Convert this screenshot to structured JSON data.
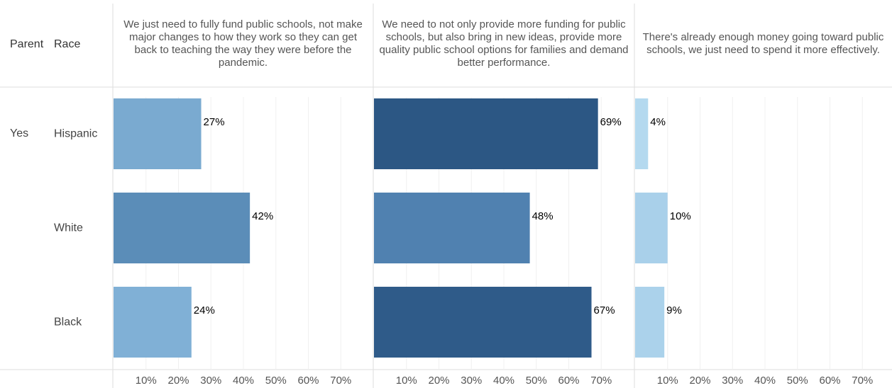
{
  "chart_data": {
    "type": "bar",
    "row_headers": [
      "Parent",
      "Race"
    ],
    "parent": "Yes",
    "categories": [
      "Hispanic",
      "White",
      "Black"
    ],
    "series": [
      {
        "name": "We just need to fully fund public schools, not make major changes to how they work so they can get back to teaching the way they were before the pandemic.",
        "values": [
          27,
          42,
          24
        ],
        "value_labels": [
          "27%",
          "42%",
          "24%"
        ],
        "colors": [
          "#7aaad0",
          "#5b8db8",
          "#80b0d6"
        ]
      },
      {
        "name": "We need to not only provide more funding for public schools, but also bring in new ideas, provide more quality public school options for families and demand better performance.",
        "values": [
          69,
          48,
          67
        ],
        "value_labels": [
          "69%",
          "48%",
          "67%"
        ],
        "colors": [
          "#2c5784",
          "#5081b0",
          "#2f5b89"
        ]
      },
      {
        "name": "There's already enough money going toward public schools, we just need to spend it more effectively.",
        "values": [
          4,
          10,
          9
        ],
        "value_labels": [
          "4%",
          "10%",
          "9%"
        ],
        "colors": [
          "#b4d9ef",
          "#a9d0ea",
          "#abd2eb"
        ]
      }
    ],
    "xlim": [
      0,
      80
    ],
    "xticks": [
      {
        "value": 10,
        "label": "10%"
      },
      {
        "value": 20,
        "label": "20%"
      },
      {
        "value": 30,
        "label": "30%"
      },
      {
        "value": 40,
        "label": "40%"
      },
      {
        "value": 50,
        "label": "50%"
      },
      {
        "value": 60,
        "label": "60%"
      },
      {
        "value": 70,
        "label": "70%"
      }
    ],
    "grid": true
  }
}
